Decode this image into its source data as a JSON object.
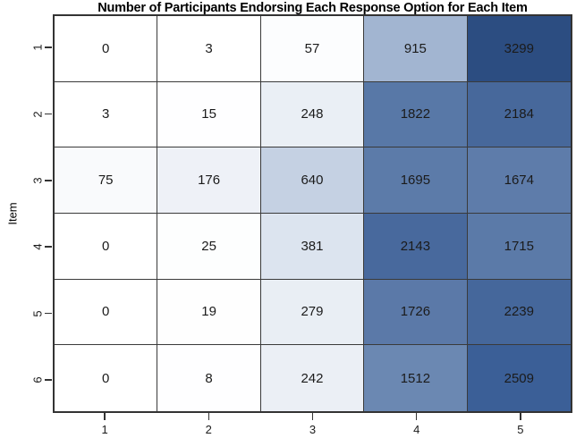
{
  "title": "Number of Participants Endorsing Each Response Option for Each Item",
  "chart_data": {
    "type": "heatmap",
    "title": "Number of Participants Endorsing Each Response Option for Each Item",
    "xlabel": "",
    "ylabel": "Item",
    "x_tick_labels": [
      "1",
      "2",
      "3",
      "4",
      "5"
    ],
    "y_tick_labels": [
      "1",
      "2",
      "3",
      "4",
      "5",
      "6"
    ],
    "value_min": 0,
    "value_max": 3299,
    "legend": "none",
    "grid_line_color": "#333333",
    "colormap": {
      "low": "#FFFFFF",
      "high": "#2C4D81"
    },
    "rows": [
      {
        "item": "1",
        "values": [
          0,
          3,
          57,
          915,
          3299
        ],
        "colors": [
          "#FFFFFF",
          "#FFFFFF",
          "#FCFDFE",
          "#A2B5D1",
          "#2C4D81"
        ]
      },
      {
        "item": "2",
        "values": [
          3,
          15,
          248,
          1822,
          2184
        ],
        "colors": [
          "#FFFFFF",
          "#FEFEFF",
          "#EAEFF5",
          "#5878A7",
          "#47689B"
        ]
      },
      {
        "item": "3",
        "values": [
          75,
          176,
          640,
          1695,
          1674
        ],
        "colors": [
          "#F9FAFC",
          "#EEF1F7",
          "#C5D1E3",
          "#5C7BA9",
          "#5E7CAA"
        ]
      },
      {
        "item": "4",
        "values": [
          0,
          25,
          381,
          2143,
          1715
        ],
        "colors": [
          "#FFFFFF",
          "#FDFEFE",
          "#DCE4EF",
          "#48699D",
          "#5B7AA8"
        ]
      },
      {
        "item": "5",
        "values": [
          0,
          19,
          279,
          1726,
          2239
        ],
        "colors": [
          "#FFFFFF",
          "#FEFEFE",
          "#E9EEF4",
          "#5B79A8",
          "#45679B"
        ]
      },
      {
        "item": "6",
        "values": [
          0,
          8,
          242,
          1512,
          2509
        ],
        "colors": [
          "#FFFFFF",
          "#FEFEFF",
          "#EBEFF5",
          "#6B88B2",
          "#3B5F97"
        ]
      }
    ]
  }
}
